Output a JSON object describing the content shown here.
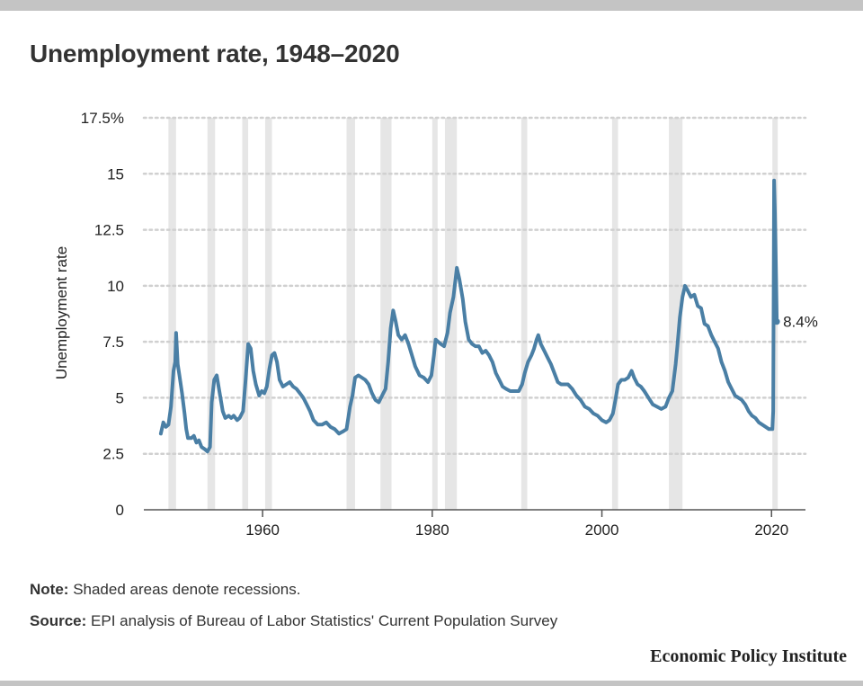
{
  "title": "Unemployment rate, 1948–2020",
  "note": {
    "label": "Note:",
    "text": "Shaded areas denote recessions."
  },
  "source": {
    "label": "Source:",
    "text": "EPI analysis of Bureau of Labor Statistics' Current Population Survey"
  },
  "brand": "Economic Policy Institute",
  "colors": {
    "line": "#4a7fa5",
    "recession": "#e6e6e6",
    "grid": "#d0d0d0",
    "axis": "#555555"
  },
  "chart_data": {
    "type": "line",
    "title": "Unemployment rate, 1948–2020",
    "ylabel": "Unemployment rate",
    "xlabel": "",
    "xlim": [
      1946,
      2024
    ],
    "ylim": [
      0,
      17.5
    ],
    "xticks": [
      1960,
      1980,
      2000,
      2020
    ],
    "yticks": [
      0,
      2.5,
      5,
      7.5,
      10,
      12.5,
      15,
      17.5
    ],
    "ytick_labels": [
      "0",
      "2.5",
      "5",
      "7.5",
      "10",
      "12.5",
      "15",
      "17.5%"
    ],
    "grid": "horizontal dotted",
    "end_label": "8.4%",
    "recessions": [
      [
        1948.9,
        1949.8
      ],
      [
        1953.5,
        1954.4
      ],
      [
        1957.6,
        1958.3
      ],
      [
        1960.3,
        1961.1
      ],
      [
        1969.9,
        1970.9
      ],
      [
        1973.9,
        1975.2
      ],
      [
        1980.0,
        1980.5
      ],
      [
        1981.5,
        1982.9
      ],
      [
        1990.5,
        1991.2
      ],
      [
        2001.2,
        2001.9
      ],
      [
        2007.9,
        2009.5
      ],
      [
        2020.1,
        2020.4
      ]
    ],
    "series": [
      {
        "values": [
          [
            1948.0,
            3.4
          ],
          [
            1948.3,
            3.9
          ],
          [
            1948.6,
            3.7
          ],
          [
            1948.9,
            3.8
          ],
          [
            1949.2,
            4.6
          ],
          [
            1949.5,
            6.2
          ],
          [
            1949.7,
            6.6
          ],
          [
            1949.8,
            7.9
          ],
          [
            1950.0,
            6.5
          ],
          [
            1950.2,
            6.0
          ],
          [
            1950.5,
            5.2
          ],
          [
            1950.8,
            4.3
          ],
          [
            1951.0,
            3.6
          ],
          [
            1951.2,
            3.2
          ],
          [
            1951.6,
            3.2
          ],
          [
            1951.9,
            3.3
          ],
          [
            1952.2,
            3.0
          ],
          [
            1952.5,
            3.1
          ],
          [
            1952.8,
            2.8
          ],
          [
            1953.2,
            2.7
          ],
          [
            1953.5,
            2.6
          ],
          [
            1953.8,
            2.8
          ],
          [
            1954.0,
            4.8
          ],
          [
            1954.3,
            5.8
          ],
          [
            1954.6,
            6.0
          ],
          [
            1954.9,
            5.3
          ],
          [
            1955.3,
            4.4
          ],
          [
            1955.6,
            4.1
          ],
          [
            1956.0,
            4.2
          ],
          [
            1956.3,
            4.1
          ],
          [
            1956.6,
            4.2
          ],
          [
            1957.0,
            4.0
          ],
          [
            1957.3,
            4.1
          ],
          [
            1957.7,
            4.4
          ],
          [
            1958.0,
            5.8
          ],
          [
            1958.3,
            7.4
          ],
          [
            1958.6,
            7.2
          ],
          [
            1958.9,
            6.2
          ],
          [
            1959.2,
            5.6
          ],
          [
            1959.6,
            5.1
          ],
          [
            1959.9,
            5.3
          ],
          [
            1960.2,
            5.2
          ],
          [
            1960.5,
            5.5
          ],
          [
            1960.8,
            6.3
          ],
          [
            1961.1,
            6.9
          ],
          [
            1961.4,
            7.0
          ],
          [
            1961.7,
            6.6
          ],
          [
            1962.0,
            5.8
          ],
          [
            1962.4,
            5.5
          ],
          [
            1962.8,
            5.6
          ],
          [
            1963.2,
            5.7
          ],
          [
            1963.6,
            5.5
          ],
          [
            1964.0,
            5.4
          ],
          [
            1964.4,
            5.2
          ],
          [
            1964.8,
            5.0
          ],
          [
            1965.2,
            4.7
          ],
          [
            1965.6,
            4.4
          ],
          [
            1966.0,
            4.0
          ],
          [
            1966.5,
            3.8
          ],
          [
            1967.0,
            3.8
          ],
          [
            1967.5,
            3.9
          ],
          [
            1968.0,
            3.7
          ],
          [
            1968.5,
            3.6
          ],
          [
            1969.0,
            3.4
          ],
          [
            1969.5,
            3.5
          ],
          [
            1969.9,
            3.6
          ],
          [
            1970.3,
            4.6
          ],
          [
            1970.6,
            5.1
          ],
          [
            1970.9,
            5.9
          ],
          [
            1971.3,
            6.0
          ],
          [
            1971.7,
            5.9
          ],
          [
            1972.1,
            5.8
          ],
          [
            1972.5,
            5.6
          ],
          [
            1972.9,
            5.2
          ],
          [
            1973.3,
            4.9
          ],
          [
            1973.7,
            4.8
          ],
          [
            1974.1,
            5.1
          ],
          [
            1974.5,
            5.4
          ],
          [
            1974.8,
            6.6
          ],
          [
            1975.1,
            8.1
          ],
          [
            1975.4,
            8.9
          ],
          [
            1975.7,
            8.4
          ],
          [
            1976.0,
            7.8
          ],
          [
            1976.4,
            7.6
          ],
          [
            1976.8,
            7.8
          ],
          [
            1977.2,
            7.4
          ],
          [
            1977.6,
            6.9
          ],
          [
            1978.0,
            6.4
          ],
          [
            1978.5,
            6.0
          ],
          [
            1979.0,
            5.9
          ],
          [
            1979.5,
            5.7
          ],
          [
            1979.9,
            6.0
          ],
          [
            1980.2,
            6.9
          ],
          [
            1980.4,
            7.6
          ],
          [
            1980.7,
            7.5
          ],
          [
            1981.0,
            7.4
          ],
          [
            1981.4,
            7.3
          ],
          [
            1981.8,
            7.9
          ],
          [
            1982.1,
            8.8
          ],
          [
            1982.5,
            9.5
          ],
          [
            1982.9,
            10.8
          ],
          [
            1983.2,
            10.3
          ],
          [
            1983.6,
            9.4
          ],
          [
            1983.9,
            8.4
          ],
          [
            1984.3,
            7.6
          ],
          [
            1984.7,
            7.4
          ],
          [
            1985.1,
            7.3
          ],
          [
            1985.5,
            7.3
          ],
          [
            1985.9,
            7.0
          ],
          [
            1986.3,
            7.1
          ],
          [
            1986.7,
            6.9
          ],
          [
            1987.1,
            6.6
          ],
          [
            1987.5,
            6.1
          ],
          [
            1987.9,
            5.8
          ],
          [
            1988.3,
            5.5
          ],
          [
            1988.7,
            5.4
          ],
          [
            1989.2,
            5.3
          ],
          [
            1989.7,
            5.3
          ],
          [
            1990.2,
            5.3
          ],
          [
            1990.6,
            5.6
          ],
          [
            1990.9,
            6.1
          ],
          [
            1991.3,
            6.6
          ],
          [
            1991.7,
            6.9
          ],
          [
            1992.0,
            7.2
          ],
          [
            1992.3,
            7.6
          ],
          [
            1992.5,
            7.8
          ],
          [
            1992.8,
            7.4
          ],
          [
            1993.2,
            7.1
          ],
          [
            1993.6,
            6.8
          ],
          [
            1994.0,
            6.5
          ],
          [
            1994.4,
            6.1
          ],
          [
            1994.8,
            5.7
          ],
          [
            1995.2,
            5.6
          ],
          [
            1995.6,
            5.6
          ],
          [
            1996.0,
            5.6
          ],
          [
            1996.5,
            5.4
          ],
          [
            1997.0,
            5.1
          ],
          [
            1997.5,
            4.9
          ],
          [
            1998.0,
            4.6
          ],
          [
            1998.5,
            4.5
          ],
          [
            1999.0,
            4.3
          ],
          [
            1999.5,
            4.2
          ],
          [
            2000.0,
            4.0
          ],
          [
            2000.5,
            3.9
          ],
          [
            2000.9,
            4.0
          ],
          [
            2001.3,
            4.3
          ],
          [
            2001.6,
            4.9
          ],
          [
            2001.9,
            5.6
          ],
          [
            2002.3,
            5.8
          ],
          [
            2002.7,
            5.8
          ],
          [
            2003.1,
            5.9
          ],
          [
            2003.5,
            6.2
          ],
          [
            2003.8,
            5.9
          ],
          [
            2004.2,
            5.6
          ],
          [
            2004.6,
            5.5
          ],
          [
            2005.0,
            5.3
          ],
          [
            2005.5,
            5.0
          ],
          [
            2006.0,
            4.7
          ],
          [
            2006.5,
            4.6
          ],
          [
            2007.0,
            4.5
          ],
          [
            2007.5,
            4.6
          ],
          [
            2007.9,
            5.0
          ],
          [
            2008.3,
            5.3
          ],
          [
            2008.7,
            6.5
          ],
          [
            2008.9,
            7.3
          ],
          [
            2009.2,
            8.6
          ],
          [
            2009.5,
            9.5
          ],
          [
            2009.8,
            10.0
          ],
          [
            2010.1,
            9.8
          ],
          [
            2010.5,
            9.5
          ],
          [
            2010.9,
            9.6
          ],
          [
            2011.3,
            9.1
          ],
          [
            2011.7,
            9.0
          ],
          [
            2012.1,
            8.3
          ],
          [
            2012.5,
            8.2
          ],
          [
            2012.9,
            7.8
          ],
          [
            2013.3,
            7.5
          ],
          [
            2013.7,
            7.2
          ],
          [
            2014.1,
            6.6
          ],
          [
            2014.5,
            6.2
          ],
          [
            2014.9,
            5.7
          ],
          [
            2015.3,
            5.4
          ],
          [
            2015.7,
            5.1
          ],
          [
            2016.1,
            5.0
          ],
          [
            2016.5,
            4.9
          ],
          [
            2016.9,
            4.7
          ],
          [
            2017.3,
            4.4
          ],
          [
            2017.7,
            4.2
          ],
          [
            2018.1,
            4.1
          ],
          [
            2018.5,
            3.9
          ],
          [
            2018.9,
            3.8
          ],
          [
            2019.3,
            3.7
          ],
          [
            2019.7,
            3.6
          ],
          [
            2020.1,
            3.6
          ],
          [
            2020.2,
            4.4
          ],
          [
            2020.3,
            14.7
          ],
          [
            2020.4,
            13.3
          ],
          [
            2020.5,
            11.1
          ],
          [
            2020.55,
            10.2
          ],
          [
            2020.62,
            8.4
          ]
        ]
      }
    ]
  }
}
